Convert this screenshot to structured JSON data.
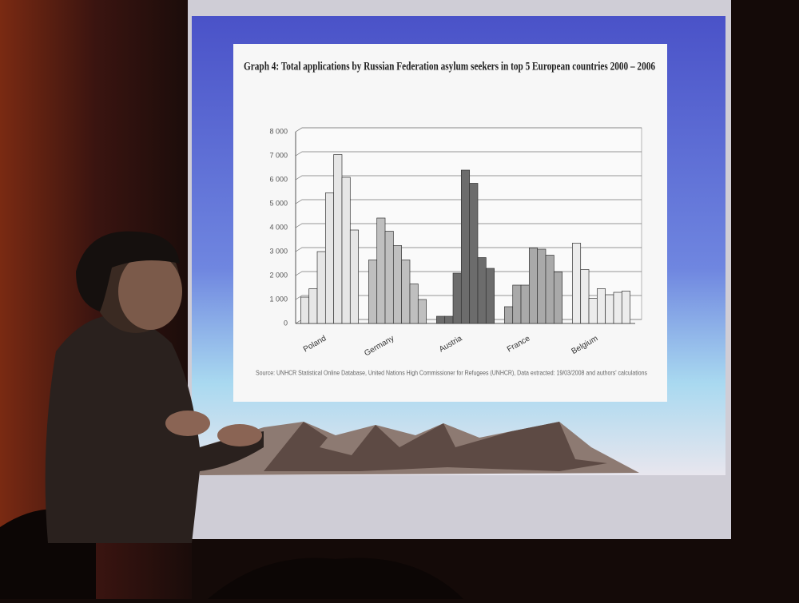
{
  "chart_data": {
    "type": "bar",
    "title": "Graph 4: Total applications by Russian Federation asylum seekers in top 5 European countries 2000 – 2006",
    "categories": [
      "Poland",
      "Germany",
      "Austria",
      "France",
      "Belgium"
    ],
    "values": [
      [
        1100,
        1450,
        3000,
        5450,
        7050,
        6100,
        3900
      ],
      [
        2650,
        4400,
        3850,
        3250,
        2650,
        1650,
        1000
      ],
      [
        300,
        300,
        2100,
        6400,
        5850,
        2750,
        2300
      ],
      [
        700,
        1600,
        1600,
        3150,
        3100,
        2850,
        2150
      ],
      [
        3350,
        2250,
        1050,
        1450,
        1200,
        1300,
        1350
      ]
    ],
    "colors": [
      "#e6e6e6",
      "#bfbfbf",
      "#6c6c6c",
      "#a9a9a9",
      "#ececec"
    ],
    "ylim": [
      0,
      8000
    ],
    "yticks": [
      0,
      {
        "value": 1000,
        "label": "1 000"
      },
      {
        "value": 2000,
        "label": "2 000"
      },
      {
        "value": 3000,
        "label": "3 000"
      },
      {
        "value": 4000,
        "label": "4 000"
      },
      {
        "value": 5000,
        "label": "5 000"
      },
      {
        "value": 6000,
        "label": "6 000"
      },
      {
        "value": 7000,
        "label": "7 000"
      },
      {
        "value": 8000,
        "label": "8 000"
      }
    ],
    "grid": true,
    "source": "Source: UNHCR Statistical Online Database, United Nations High Commissioner for Refugees (UNHCR), Data extracted: 19/03/2008 and authors' calculations"
  }
}
